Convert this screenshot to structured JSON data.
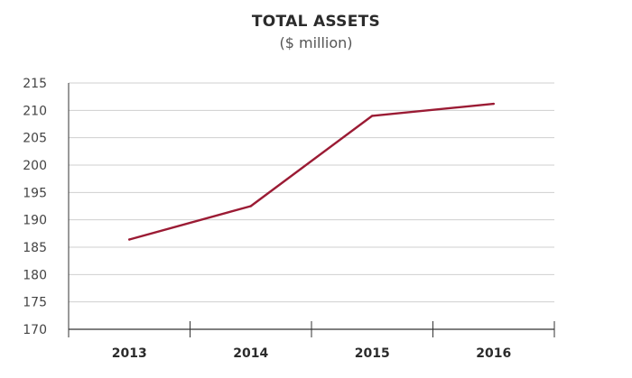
{
  "chart_data": {
    "type": "line",
    "title": "TOTAL ASSETS",
    "subtitle": "($ million)",
    "xlabel": "",
    "ylabel": "",
    "categories": [
      "2013",
      "2014",
      "2015",
      "2016"
    ],
    "series": [
      {
        "values": [
          186.4,
          192.5,
          209.0,
          211.2
        ],
        "color": "#9b1b34"
      }
    ],
    "ylim": [
      170,
      215
    ],
    "yticks": [
      170,
      175,
      180,
      185,
      190,
      195,
      200,
      205,
      210,
      215
    ],
    "grid": true,
    "legend": "none"
  }
}
